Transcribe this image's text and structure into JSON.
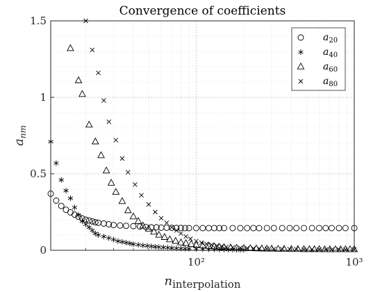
{
  "chart_data": {
    "type": "scatter",
    "title": "Convergence of coefficients",
    "xlabel": "n_interpolation",
    "ylabel": "a_nm",
    "x_scale": "log",
    "xlim": [
      12,
      1000
    ],
    "ylim": [
      0,
      1.5
    ],
    "x_ticks": [
      100,
      1000
    ],
    "x_tick_labels": [
      "10²",
      "10³"
    ],
    "y_ticks": [
      0,
      0.5,
      1,
      1.5
    ],
    "y_tick_labels": [
      "0",
      "0.5",
      "1",
      "1.5"
    ],
    "grid": true,
    "minor_grid": true,
    "legend_position": "top-right",
    "series": [
      {
        "name": "a_20",
        "marker": "circle",
        "x": [
          12,
          13,
          14,
          15,
          16,
          17,
          18,
          19,
          20,
          21,
          22,
          23,
          24,
          26,
          28,
          30,
          33,
          36,
          40,
          44,
          48,
          52,
          56,
          60,
          65,
          70,
          75,
          80,
          85,
          90,
          100,
          110,
          120,
          130,
          140,
          150,
          170,
          190,
          210,
          230,
          250,
          280,
          310,
          350,
          390,
          430,
          480,
          540,
          600,
          660,
          720,
          800,
          880,
          1000
        ],
        "y": [
          0.37,
          0.325,
          0.29,
          0.265,
          0.248,
          0.233,
          0.22,
          0.208,
          0.2,
          0.195,
          0.189,
          0.183,
          0.18,
          0.175,
          0.17,
          0.165,
          0.162,
          0.16,
          0.158,
          0.155,
          0.152,
          0.15,
          0.15,
          0.148,
          0.147,
          0.147,
          0.146,
          0.146,
          0.145,
          0.145,
          0.145,
          0.145,
          0.145,
          0.145,
          0.145,
          0.145,
          0.145,
          0.145,
          0.145,
          0.145,
          0.145,
          0.145,
          0.145,
          0.145,
          0.145,
          0.145,
          0.145,
          0.145,
          0.145,
          0.145,
          0.145,
          0.145,
          0.145,
          0.145
        ]
      },
      {
        "name": "a_40",
        "marker": "asterisk",
        "x": [
          12,
          13,
          14,
          15,
          16,
          17,
          18,
          19,
          20,
          21,
          22,
          23,
          24,
          26,
          28,
          30,
          32,
          34,
          36,
          38,
          40,
          43,
          46,
          49,
          52,
          55,
          58,
          62,
          66,
          70,
          75,
          80,
          85,
          90,
          100,
          110,
          120,
          130,
          140,
          150,
          160,
          170,
          180,
          190,
          200
        ],
        "y": [
          0.71,
          0.57,
          0.46,
          0.39,
          0.34,
          0.28,
          0.23,
          0.19,
          0.17,
          0.15,
          0.13,
          0.11,
          0.1,
          0.09,
          0.08,
          0.07,
          0.06,
          0.055,
          0.05,
          0.045,
          0.04,
          0.036,
          0.032,
          0.029,
          0.026,
          0.023,
          0.021,
          0.019,
          0.017,
          0.015,
          0.013,
          0.012,
          0.011,
          0.01,
          0.009,
          0.008,
          0.007,
          0.006,
          0.005,
          0.005,
          0.004,
          0.004,
          0.003,
          0.003,
          0.003
        ]
      },
      {
        "name": "a_60",
        "marker": "triangle",
        "x": [
          16,
          18,
          19,
          21,
          23,
          25,
          27,
          29,
          31,
          34,
          37,
          40,
          43,
          46,
          50,
          54,
          58,
          63,
          68,
          74,
          80,
          86,
          93,
          100,
          110,
          120,
          130,
          140,
          150,
          165,
          180,
          200,
          220,
          240,
          260,
          280,
          300,
          330,
          360,
          400,
          440,
          480,
          520,
          560,
          600,
          650,
          700,
          760,
          820,
          880,
          940,
          1000
        ],
        "y": [
          1.32,
          1.11,
          1.02,
          0.82,
          0.71,
          0.62,
          0.52,
          0.44,
          0.38,
          0.32,
          0.26,
          0.22,
          0.19,
          0.16,
          0.14,
          0.12,
          0.1,
          0.085,
          0.07,
          0.06,
          0.05,
          0.045,
          0.04,
          0.035,
          0.03,
          0.027,
          0.024,
          0.021,
          0.019,
          0.017,
          0.015,
          0.013,
          0.012,
          0.011,
          0.01,
          0.009,
          0.009,
          0.008,
          0.008,
          0.007,
          0.007,
          0.006,
          0.006,
          0.006,
          0.006,
          0.005,
          0.005,
          0.005,
          0.005,
          0.005,
          0.005,
          0.005
        ]
      },
      {
        "name": "a_80",
        "marker": "cross",
        "x": [
          20,
          22,
          24,
          26,
          28,
          31,
          34,
          37,
          41,
          45,
          50,
          55,
          60,
          65,
          70,
          75,
          80,
          86,
          92,
          100,
          108,
          116,
          125,
          135,
          145,
          155,
          170,
          190,
          210,
          230,
          250,
          280,
          310,
          350,
          390,
          430,
          480,
          540,
          600,
          660,
          720,
          800,
          880,
          1000
        ],
        "y": [
          1.5,
          1.31,
          1.16,
          0.98,
          0.84,
          0.72,
          0.6,
          0.51,
          0.43,
          0.36,
          0.3,
          0.25,
          0.21,
          0.18,
          0.15,
          0.13,
          0.11,
          0.09,
          0.075,
          0.06,
          0.05,
          0.042,
          0.036,
          0.03,
          0.026,
          0.022,
          0.019,
          0.016,
          0.014,
          0.012,
          0.011,
          0.01,
          0.009,
          0.008,
          0.007,
          0.007,
          0.006,
          0.006,
          0.005,
          0.005,
          0.005,
          0.005,
          0.005,
          0.005
        ]
      }
    ]
  }
}
